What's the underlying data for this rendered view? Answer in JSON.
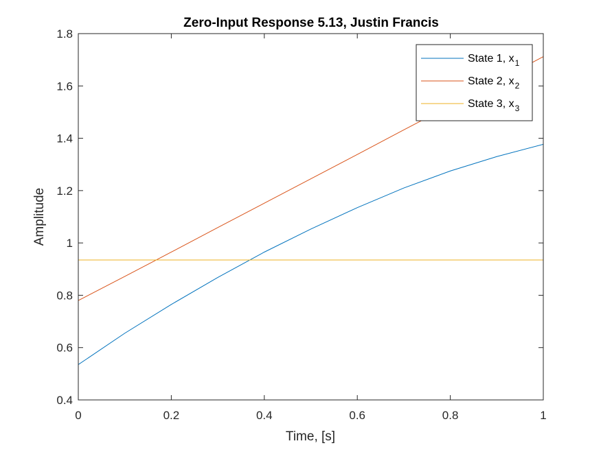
{
  "chart_data": {
    "type": "line",
    "title": "Zero-Input Response 5.13, Justin Francis",
    "xlabel": "Time, [s]",
    "ylabel": "Amplitude",
    "xlim": [
      0,
      1
    ],
    "ylim": [
      0.4,
      1.8
    ],
    "xticks": [
      0,
      0.2,
      0.4,
      0.6,
      0.8,
      1
    ],
    "xtick_labels": [
      "0",
      "0.2",
      "0.4",
      "0.6",
      "0.8",
      "1"
    ],
    "yticks": [
      0.4,
      0.6,
      0.8,
      1.0,
      1.2,
      1.4,
      1.6,
      1.8
    ],
    "ytick_labels": [
      "0.4",
      "0.6",
      "0.8",
      "1",
      "1.2",
      "1.4",
      "1.6",
      "1.8"
    ],
    "grid": false,
    "legend_position": "top-right",
    "x": [
      0,
      0.1,
      0.2,
      0.3,
      0.4,
      0.5,
      0.6,
      0.7,
      0.8,
      0.9,
      1.0
    ],
    "series": [
      {
        "name": "State 1, x",
        "subscript": "1",
        "color": "#0072BD",
        "values": [
          0.535,
          0.655,
          0.765,
          0.868,
          0.965,
          1.053,
          1.135,
          1.21,
          1.275,
          1.33,
          1.377
        ]
      },
      {
        "name": "State 2, x",
        "subscript": "2",
        "color": "#D95319",
        "values": [
          0.78,
          0.872,
          0.965,
          1.059,
          1.152,
          1.245,
          1.338,
          1.432,
          1.525,
          1.618,
          1.712
        ]
      },
      {
        "name": "State 3, x",
        "subscript": "3",
        "color": "#EDB120",
        "values": [
          0.935,
          0.935,
          0.935,
          0.935,
          0.935,
          0.935,
          0.935,
          0.935,
          0.935,
          0.935,
          0.935
        ]
      }
    ]
  }
}
